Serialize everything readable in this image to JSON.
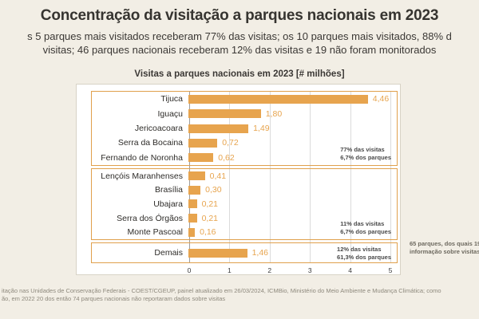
{
  "page": {
    "title": "Concentração da visitação a parques nacionais em 2023",
    "subtitle_line1": "s 5 parques mais visitados receberam 77% das visitas; os 10 parques mais visitados, 88% d",
    "subtitle_line2": "visitas; 46 parques nacionais receberam 12% das visitas e 19 não foram monitorados",
    "footer_line1": "itação nas Unidades de Conservação Federais - COEST/CGEUP, painel atualizado em 26/03/2024, ICMBio, Ministério do Meio Ambiente e Mudança Climática; como",
    "footer_line2": "ão, em 2022 20 dos então 74 parques nacionais não reportaram dados sobre visitas",
    "side_note_line1": "65 parques, dos quais 19",
    "side_note_line2": "informação sobre visitas"
  },
  "chart_data": {
    "type": "bar",
    "orientation": "horizontal",
    "title": "Visitas a parques nacionais em 2023 [# milhões]",
    "categories": [
      "Tijuca",
      "Iguaçu",
      "Jericoacoara",
      "Serra da Bocaina",
      "Fernando de Noronha",
      "Lençóis Maranhenses",
      "Brasília",
      "Ubajara",
      "Serra dos Órgãos",
      "Monte Pascoal",
      "Demais"
    ],
    "values": [
      4.46,
      1.8,
      1.49,
      0.72,
      0.62,
      0.41,
      0.3,
      0.21,
      0.21,
      0.16,
      1.46
    ],
    "value_labels": [
      "4,46",
      "1,80",
      "1,49",
      "0,72",
      "0,62",
      "0,41",
      "0,30",
      "0,21",
      "0,21",
      "0,16",
      "1,46"
    ],
    "xlim": [
      0,
      5
    ],
    "xticks": [
      "0",
      "1",
      "2",
      "3",
      "4",
      "5"
    ],
    "grid": true,
    "groups": [
      {
        "start": 0,
        "end": 4,
        "note_line1": "77% das visitas",
        "note_line2": "6,7% dos parques"
      },
      {
        "start": 5,
        "end": 9,
        "note_line1": "11% das visitas",
        "note_line2": "6,7% dos parques"
      },
      {
        "start": 10,
        "end": 10,
        "note_line1": "12% das visitas",
        "note_line2": "61,3% dos parques"
      }
    ],
    "colors": {
      "bar": "#E7A44E",
      "group_border": "#E0A04C",
      "background": "#F2EEE5",
      "panel": "#FFFFFF"
    }
  }
}
